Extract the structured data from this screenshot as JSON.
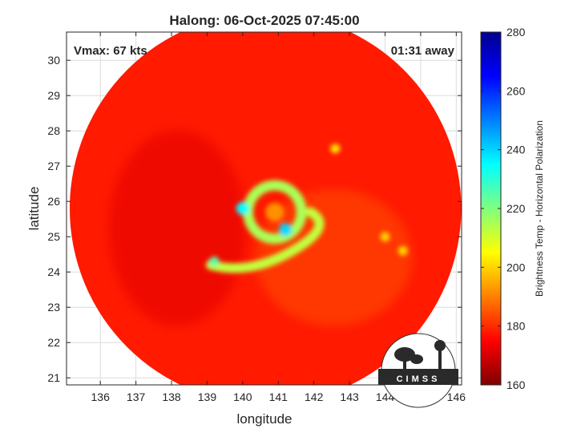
{
  "title": "Halong: 06-Oct-2025 07:45:00",
  "vmax_label": "Vmax: 67 kts",
  "time_label": "01:31 away",
  "logo_text": "CIMSS",
  "chart_data": {
    "type": "heatmap",
    "title": "Halong: 06-Oct-2025 07:45:00",
    "xlabel": "longitude",
    "ylabel": "latitude",
    "xlim": [
      135.05,
      146.15
    ],
    "ylim": [
      20.8,
      30.8
    ],
    "x_ticks": [
      136,
      137,
      138,
      139,
      140,
      141,
      142,
      143,
      144,
      145,
      146
    ],
    "y_ticks": [
      21,
      22,
      23,
      24,
      25,
      26,
      27,
      28,
      29,
      30
    ],
    "grid": true,
    "swath": {
      "center_lon": 140.64,
      "center_lat": 25.8,
      "radius_deg": 5.5
    },
    "storm_center": {
      "lon": 140.9,
      "lat": 25.55
    },
    "colorbar": {
      "label": "Brightness Temp - Horizontal Polarization",
      "min": 160,
      "max": 280,
      "ticks": [
        160,
        180,
        200,
        220,
        240,
        260,
        280
      ],
      "colormap": "jet"
    },
    "features": [
      {
        "name": "eyewall-ring",
        "lon": 140.9,
        "lat": 25.7,
        "radius": 0.75,
        "tb": 225
      },
      {
        "name": "warm-spot-west",
        "lon": 140.0,
        "lat": 25.8,
        "tb": 205
      },
      {
        "name": "warm-spot-east",
        "lon": 141.2,
        "lat": 25.2,
        "tb": 200
      },
      {
        "name": "spiral-band-south",
        "lon": 140.2,
        "lat": 24.2,
        "tb": 228
      },
      {
        "name": "convection-cell",
        "lon": 139.2,
        "lat": 24.3,
        "tb": 215
      },
      {
        "name": "convection-cell",
        "lon": 142.6,
        "lat": 27.5,
        "tb": 238
      },
      {
        "name": "convection-cell",
        "lon": 144.0,
        "lat": 25.0,
        "tb": 240
      },
      {
        "name": "convection-cell",
        "lon": 144.5,
        "lat": 24.6,
        "tb": 240
      }
    ]
  }
}
